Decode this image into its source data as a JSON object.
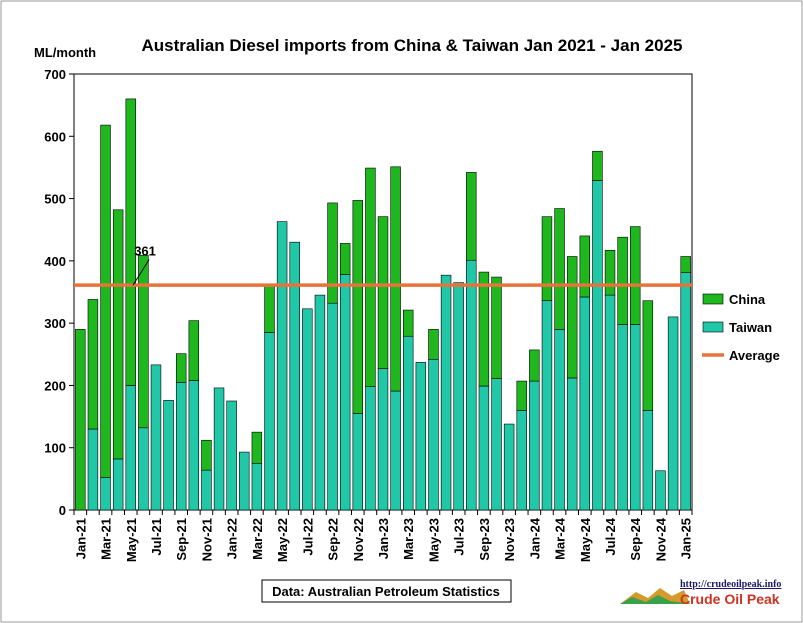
{
  "chart_data": {
    "type": "bar",
    "stacked": true,
    "title": "Australian Diesel imports from China & Taiwan Jan 2021 - Jan 2025",
    "ylabel": "ML/month",
    "ylim": [
      0,
      700
    ],
    "yticks": [
      0,
      100,
      200,
      300,
      400,
      500,
      600,
      700
    ],
    "grid": false,
    "legend_position": "right",
    "x_tick_labels": [
      "Jan-21",
      "Mar-21",
      "May-21",
      "Jul-21",
      "Sep-21",
      "Nov-21",
      "Jan-22",
      "Mar-22",
      "May-22",
      "Jul-22",
      "Sep-22",
      "Nov-22",
      "Jan-23",
      "Mar-23",
      "May-23",
      "Jul-23",
      "Sep-23",
      "Nov-23",
      "Jan-24",
      "Mar-24",
      "May-24",
      "Jul-24",
      "Sep-24",
      "Nov-24",
      "Jan-25"
    ],
    "categories": [
      "Jan-21",
      "Feb-21",
      "Mar-21",
      "Apr-21",
      "May-21",
      "Jun-21",
      "Jul-21",
      "Aug-21",
      "Sep-21",
      "Oct-21",
      "Nov-21",
      "Dec-21",
      "Jan-22",
      "Feb-22",
      "Mar-22",
      "Apr-22",
      "May-22",
      "Jun-22",
      "Jul-22",
      "Aug-22",
      "Sep-22",
      "Oct-22",
      "Nov-22",
      "Dec-22",
      "Jan-23",
      "Feb-23",
      "Mar-23",
      "Apr-23",
      "May-23",
      "Jun-23",
      "Jul-23",
      "Aug-23",
      "Sep-23",
      "Oct-23",
      "Nov-23",
      "Dec-23",
      "Jan-24",
      "Feb-24",
      "Mar-24",
      "Apr-24",
      "May-24",
      "Jun-24",
      "Jul-24",
      "Aug-24",
      "Sep-24",
      "Oct-24",
      "Nov-24",
      "Dec-24",
      "Jan-25"
    ],
    "series": [
      {
        "name": "Taiwan",
        "color": "#20c8a8",
        "values": [
          0,
          130,
          52,
          82,
          200,
          132,
          233,
          176,
          205,
          208,
          64,
          196,
          175,
          93,
          75,
          285,
          463,
          430,
          323,
          345,
          332,
          378,
          155,
          198,
          227,
          191,
          279,
          237,
          242,
          377,
          365,
          401,
          199,
          211,
          138,
          160,
          207,
          336,
          290,
          212,
          342,
          529,
          345,
          298,
          298,
          160,
          63,
          310,
          381
        ]
      },
      {
        "name": "China",
        "color": "#1eb81e",
        "values": [
          290,
          208,
          566,
          400,
          460,
          277,
          0,
          0,
          46,
          96,
          48,
          0,
          0,
          0,
          50,
          75,
          0,
          0,
          0,
          0,
          161,
          50,
          342,
          351,
          244,
          360,
          42,
          0,
          48,
          0,
          0,
          141,
          183,
          163,
          0,
          47,
          50,
          135,
          194,
          195,
          98,
          47,
          72,
          140,
          157,
          176,
          0,
          0,
          26
        ]
      }
    ],
    "average": {
      "name": "Average",
      "value": 361,
      "label": "361",
      "color": "#e8733a"
    },
    "source_note": "Data: Australian Petroleum Statistics"
  },
  "logo": {
    "url_text": "http://crudeoilpeak.info",
    "name_text": "Crude Oil Peak"
  }
}
